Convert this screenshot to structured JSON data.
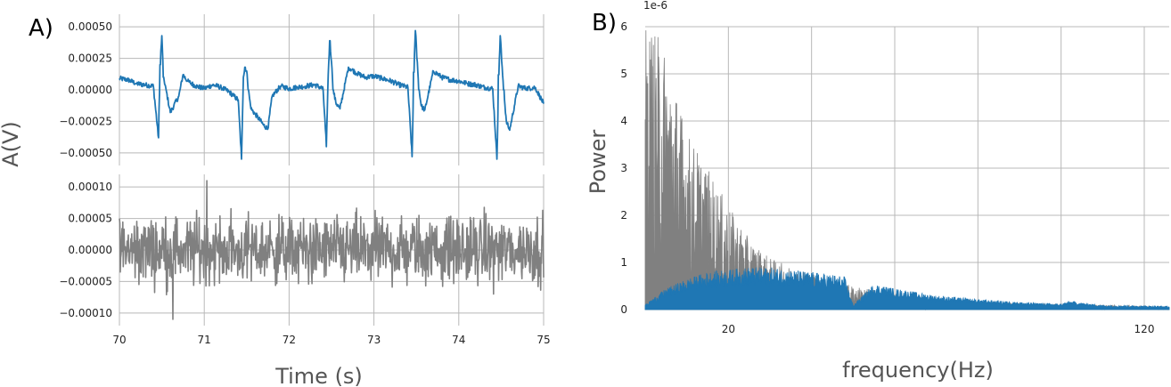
{
  "panel_a": {
    "label": "A)",
    "xlabel": "Time (s)",
    "ylabel": "A(V)",
    "chart_data": [
      {
        "type": "line",
        "title": "",
        "xlim": [
          70,
          75
        ],
        "ylim": [
          -0.0006,
          0.0006
        ],
        "yticks": [
          0.0005,
          0.00025,
          0.0,
          -0.00025,
          -0.0005
        ],
        "ytick_labels": [
          "0.00050",
          "0.00025",
          "0.00000",
          "−0.00025",
          "−0.00050"
        ],
        "grid": true,
        "series": [
          {
            "color": "#1f77b4",
            "x": [
              70.0,
              70.1,
              70.2,
              70.3,
              70.4,
              70.46,
              70.48,
              70.5,
              70.52,
              70.55,
              70.6,
              70.7,
              70.75,
              70.8,
              70.9,
              71.0,
              71.1,
              71.2,
              71.3,
              71.4,
              71.44,
              71.46,
              71.48,
              71.5,
              71.52,
              71.55,
              71.6,
              71.7,
              71.75,
              71.8,
              71.9,
              72.0,
              72.1,
              72.2,
              72.3,
              72.4,
              72.44,
              72.46,
              72.48,
              72.5,
              72.52,
              72.55,
              72.6,
              72.7,
              72.8,
              72.9,
              73.0,
              73.1,
              73.2,
              73.3,
              73.4,
              73.45,
              73.47,
              73.49,
              73.51,
              73.53,
              73.56,
              73.6,
              73.7,
              73.8,
              73.9,
              74.0,
              74.1,
              74.2,
              74.3,
              74.4,
              74.45,
              74.47,
              74.49,
              74.51,
              74.53,
              74.56,
              74.6,
              74.7,
              74.8,
              74.9,
              75.0
            ],
            "values": [
              9e-05,
              8e-05,
              5e-05,
              4e-05,
              3e-05,
              -0.00038,
              0.0002,
              0.00043,
              0.0001,
              0.0,
              -0.00018,
              -5e-05,
              0.00012,
              7e-05,
              3e-05,
              1e-05,
              4e-05,
              2e-05,
              -2e-05,
              -8e-05,
              -0.00055,
              0.0001,
              0.00018,
              0.00015,
              0.0,
              -0.00015,
              -0.00019,
              -0.00028,
              -0.00031,
              -5e-05,
              3e-05,
              1e-05,
              2e-05,
              3e-05,
              4e-05,
              1e-05,
              -0.00045,
              0.00012,
              0.00039,
              0.00022,
              0.0,
              -0.0001,
              -0.00015,
              0.00018,
              0.00013,
              0.0001,
              0.00011,
              9e-05,
              7e-05,
              4e-05,
              2e-05,
              -0.00053,
              0.00014,
              0.00047,
              0.00022,
              0.0,
              -0.00013,
              -0.00016,
              0.00015,
              0.0001,
              8e-05,
              7e-05,
              5e-05,
              4e-05,
              2e-05,
              1e-05,
              -0.00055,
              0.00012,
              0.00043,
              0.00018,
              0.0,
              -0.00025,
              -0.00032,
              3e-05,
              1e-05,
              2e-05,
              -0.00011
            ]
          }
        ]
      },
      {
        "type": "line",
        "title": "",
        "xlim": [
          70,
          75
        ],
        "ylim": [
          -0.00012,
          0.00012
        ],
        "xticks": [
          70,
          71,
          72,
          73,
          74,
          75
        ],
        "xtick_labels": [
          "70",
          "71",
          "72",
          "73",
          "74",
          "75"
        ],
        "yticks": [
          0.0001,
          5e-05,
          0.0,
          -5e-05,
          -0.0001
        ],
        "ytick_labels": [
          "0.00010",
          "0.00005",
          "0.00000",
          "−0.00005",
          "−0.00010"
        ],
        "grid": true,
        "series": [
          {
            "color": "#808080",
            "noise": true,
            "x_range": [
              70,
              75
            ],
            "amplitude": 4e-05,
            "extreme_values": [
              {
                "x": 70.63,
                "value": -0.00011
              },
              {
                "x": 71.03,
                "value": 0.00011
              }
            ]
          }
        ]
      }
    ]
  },
  "panel_b": {
    "label": "B)",
    "xlabel": "frequency(Hz)",
    "ylabel": "Power",
    "offset_text": "1e-6",
    "chart_data": {
      "type": "area",
      "title": "",
      "xlim": [
        0,
        126
      ],
      "ylim": [
        0,
        6
      ],
      "xticks": [
        20,
        120
      ],
      "xtick_labels": [
        "20",
        "120"
      ],
      "yticks": [
        0,
        1,
        2,
        3,
        4,
        5,
        6
      ],
      "ytick_labels": [
        "0",
        "1",
        "2",
        "3",
        "4",
        "5",
        "6"
      ],
      "grid": true,
      "series": [
        {
          "color": "#808080",
          "spectrum": "noise",
          "x": [
            0,
            2,
            5,
            10,
            15,
            20,
            25,
            30,
            35,
            40,
            50,
            60,
            70,
            80,
            90,
            100,
            110,
            120,
            126
          ],
          "envelope": [
            6.0,
            6.0,
            5.5,
            3.8,
            3.0,
            2.2,
            1.5,
            1.1,
            0.9,
            0.8,
            0.5,
            0.35,
            0.25,
            0.18,
            0.14,
            0.12,
            0.1,
            0.08,
            0.07
          ]
        },
        {
          "color": "#1f77b4",
          "spectrum": "signal",
          "x": [
            0,
            2,
            5,
            10,
            15,
            20,
            25,
            30,
            35,
            40,
            45,
            48,
            50,
            55,
            60,
            70,
            80,
            90,
            100,
            102,
            110,
            120,
            126
          ],
          "envelope": [
            0.1,
            0.25,
            0.45,
            0.65,
            0.8,
            0.85,
            0.9,
            0.9,
            0.85,
            0.8,
            0.75,
            0.7,
            0.1,
            0.55,
            0.45,
            0.3,
            0.22,
            0.16,
            0.12,
            0.18,
            0.09,
            0.08,
            0.07
          ]
        }
      ]
    }
  }
}
